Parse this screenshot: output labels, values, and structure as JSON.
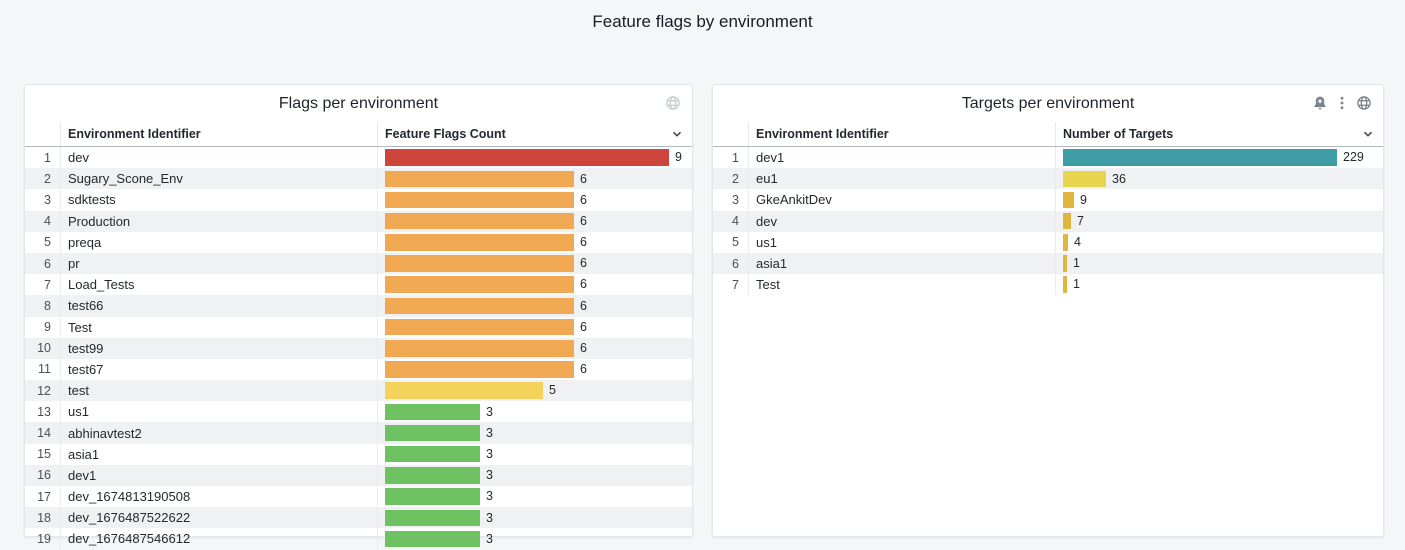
{
  "page": {
    "title": "Feature flags by environment"
  },
  "colors": {
    "background": "#F5F6F8",
    "panel_bg": "#FFFFFF",
    "row_alt": "#EFF1F2",
    "red": "#CE453B",
    "orange": "#F0A952",
    "yellow": "#F4D35C",
    "green": "#6FC262",
    "teal": "#3F9DA5",
    "lemon": "#E8D54E",
    "gold": "#E0B63E"
  },
  "panels": [
    {
      "title": "Flags per environment",
      "icons": [
        "globe-icon"
      ],
      "columns": {
        "name": "Environment Identifier",
        "value": "Feature Flags Count"
      },
      "sort": "desc",
      "max": 9,
      "rows": [
        {
          "n": 1,
          "name": "dev",
          "value": 9,
          "color": "#CE453B"
        },
        {
          "n": 2,
          "name": "Sugary_Scone_Env",
          "value": 6,
          "color": "#F0A952"
        },
        {
          "n": 3,
          "name": "sdktests",
          "value": 6,
          "color": "#F0A952"
        },
        {
          "n": 4,
          "name": "Production",
          "value": 6,
          "color": "#F0A952"
        },
        {
          "n": 5,
          "name": "preqa",
          "value": 6,
          "color": "#F0A952"
        },
        {
          "n": 6,
          "name": "pr",
          "value": 6,
          "color": "#F0A952"
        },
        {
          "n": 7,
          "name": "Load_Tests",
          "value": 6,
          "color": "#F0A952"
        },
        {
          "n": 8,
          "name": "test66",
          "value": 6,
          "color": "#F0A952"
        },
        {
          "n": 9,
          "name": "Test",
          "value": 6,
          "color": "#F0A952"
        },
        {
          "n": 10,
          "name": "test99",
          "value": 6,
          "color": "#F0A952"
        },
        {
          "n": 11,
          "name": "test67",
          "value": 6,
          "color": "#F0A952"
        },
        {
          "n": 12,
          "name": "test",
          "value": 5,
          "color": "#F4D35C"
        },
        {
          "n": 13,
          "name": "us1",
          "value": 3,
          "color": "#6FC262"
        },
        {
          "n": 14,
          "name": "abhinavtest2",
          "value": 3,
          "color": "#6FC262"
        },
        {
          "n": 15,
          "name": "asia1",
          "value": 3,
          "color": "#6FC262"
        },
        {
          "n": 16,
          "name": "dev1",
          "value": 3,
          "color": "#6FC262"
        },
        {
          "n": 17,
          "name": "dev_1674813190508",
          "value": 3,
          "color": "#6FC262"
        },
        {
          "n": 18,
          "name": "dev_1676487522622",
          "value": 3,
          "color": "#6FC262"
        },
        {
          "n": 19,
          "name": "dev_1676487546612",
          "value": 3,
          "color": "#6FC262"
        }
      ]
    },
    {
      "title": "Targets per environment",
      "icons": [
        "bell-plus-icon",
        "kebab-menu-icon",
        "globe-icon"
      ],
      "columns": {
        "name": "Environment Identifier",
        "value": "Number of Targets"
      },
      "sort": "desc",
      "max": 229,
      "rows": [
        {
          "n": 1,
          "name": "dev1",
          "value": 229,
          "color": "#3F9DA5"
        },
        {
          "n": 2,
          "name": "eu1",
          "value": 36,
          "color": "#E8D54E"
        },
        {
          "n": 3,
          "name": "GkeAnkitDev",
          "value": 9,
          "color": "#E0B63E"
        },
        {
          "n": 4,
          "name": "dev",
          "value": 7,
          "color": "#E0B63E"
        },
        {
          "n": 5,
          "name": "us1",
          "value": 4,
          "color": "#E0B63E"
        },
        {
          "n": 6,
          "name": "asia1",
          "value": 1,
          "color": "#E0B63E"
        },
        {
          "n": 7,
          "name": "Test",
          "value": 1,
          "color": "#E0B63E"
        }
      ]
    }
  ],
  "chart_data": [
    {
      "type": "table",
      "title": "Flags per environment",
      "columns": [
        "Environment Identifier",
        "Feature Flags Count"
      ],
      "categories": [
        "dev",
        "Sugary_Scone_Env",
        "sdktests",
        "Production",
        "preqa",
        "pr",
        "Load_Tests",
        "test66",
        "Test",
        "test99",
        "test67",
        "test",
        "us1",
        "abhinavtest2",
        "asia1",
        "dev1",
        "dev_1674813190508",
        "dev_1676487522622",
        "dev_1676487546612"
      ],
      "values": [
        9,
        6,
        6,
        6,
        6,
        6,
        6,
        6,
        6,
        6,
        6,
        5,
        3,
        3,
        3,
        3,
        3,
        3,
        3
      ],
      "xlim": [
        0,
        9
      ]
    },
    {
      "type": "table",
      "title": "Targets per environment",
      "columns": [
        "Environment Identifier",
        "Number of Targets"
      ],
      "categories": [
        "dev1",
        "eu1",
        "GkeAnkitDev",
        "dev",
        "us1",
        "asia1",
        "Test"
      ],
      "values": [
        229,
        36,
        9,
        7,
        4,
        1,
        1
      ],
      "xlim": [
        0,
        229
      ]
    }
  ]
}
